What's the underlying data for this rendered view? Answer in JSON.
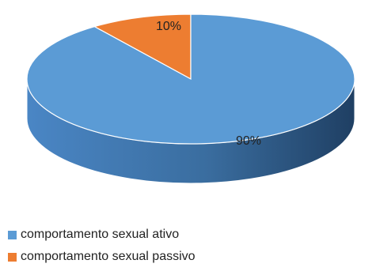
{
  "chart_data": {
    "type": "pie",
    "style": "3d",
    "slices": [
      {
        "label": "comportamento sexual ativo",
        "value": 90,
        "data_label": "90%",
        "color": "#5b9bd5"
      },
      {
        "label": "comportamento sexual passivo",
        "value": 10,
        "data_label": "10%",
        "color": "#ed7d31"
      }
    ],
    "legend_position": "bottom-left"
  }
}
